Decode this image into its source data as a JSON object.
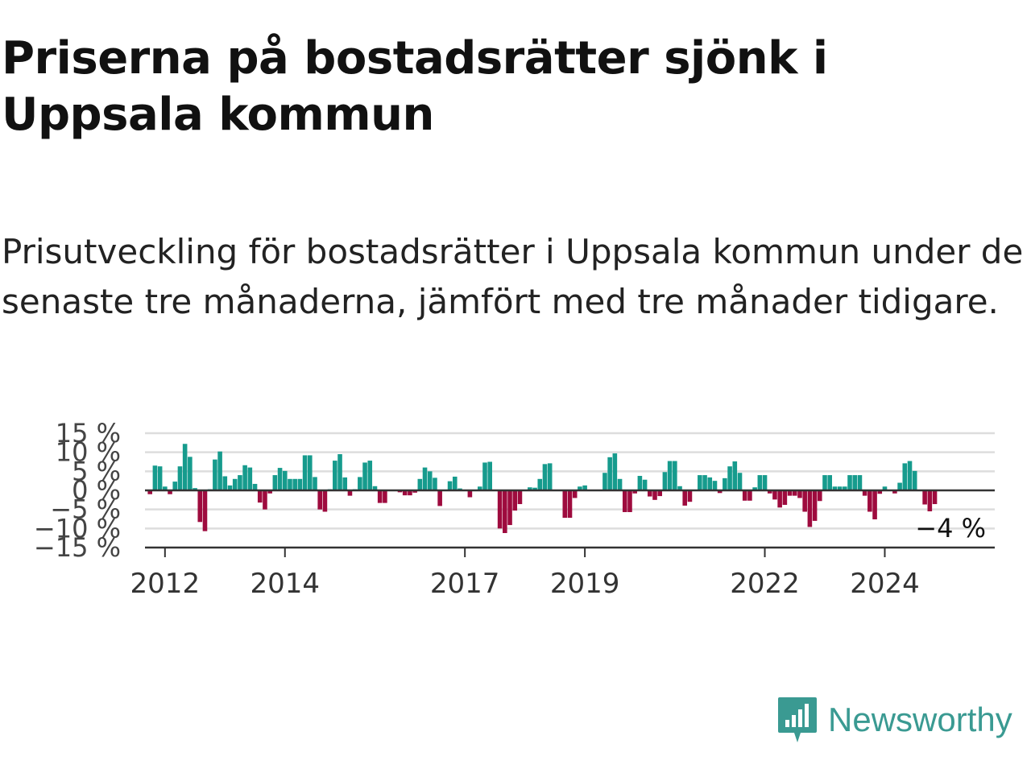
{
  "title": "Priserna på bostadsrätter sjönk i Uppsala kommun",
  "subtitle": "Prisutveckling för bostadsrätter i Uppsala kommun under de senaste tre månaderna, jämfört med tre månader tidigare.",
  "brand": "Newsworthy",
  "colors": {
    "positive": "#169b8d",
    "negative": "#9e0b3e",
    "brand": "#3a9a92",
    "grid": "#dddddd",
    "axis": "#333333"
  },
  "chart_data": {
    "type": "bar",
    "title": "Priserna på bostadsrätter sjönk i Uppsala kommun",
    "ylim": [
      -15,
      15
    ],
    "yticks": [
      "15 %",
      "10 %",
      "5 %",
      "0 %",
      "−5 %",
      "−10 %",
      "−15 %"
    ],
    "ytick_values": [
      15,
      10,
      5,
      0,
      -5,
      -10,
      -15
    ],
    "xticks": [
      "2012",
      "2014",
      "2017",
      "2019",
      "2022",
      "2024"
    ],
    "grid": true,
    "x_start": "2011-10",
    "x_step": "1 month",
    "last_value_label": "−4 %",
    "values": [
      -1,
      6.5,
      6.3,
      1,
      -1,
      2.3,
      6.3,
      12.2,
      8.8,
      0.6,
      -8.3,
      -10.7,
      0.3,
      8.1,
      10.2,
      3.7,
      1.3,
      3,
      4,
      6.6,
      6,
      1.7,
      -3.2,
      -5,
      -0.8,
      4,
      5.9,
      5.1,
      3,
      3,
      3,
      9.2,
      9.2,
      3.5,
      -5,
      -5.6,
      0.3,
      7.8,
      9.5,
      3.4,
      -1.4,
      0.3,
      3.5,
      7.3,
      7.8,
      1.1,
      -3.3,
      -3.3,
      0,
      0,
      -0.5,
      -1.3,
      -1.3,
      -0.6,
      3,
      6,
      5,
      3.3,
      -4.1,
      0,
      2.4,
      3.6,
      0.5,
      0,
      -1.8,
      0,
      1,
      7.3,
      7.5,
      -0.2,
      -10,
      -11.2,
      -9.1,
      -5.3,
      -3.6,
      0,
      0.8,
      0.7,
      3,
      6.9,
      7.1,
      0,
      0,
      -7.2,
      -7.2,
      -2,
      1,
      1.3,
      0,
      0,
      0,
      4.6,
      8.7,
      9.7,
      3,
      -5.7,
      -5.7,
      -0.8,
      3.8,
      2.8,
      -1.6,
      -2.5,
      -1.5,
      4.8,
      7.7,
      7.7,
      1.1,
      -4,
      -3,
      0,
      4,
      4,
      3.4,
      2.5,
      -0.7,
      3.2,
      6.3,
      7.6,
      4.6,
      -2.7,
      -2.7,
      0.8,
      4,
      4,
      -0.8,
      -2.4,
      -4.5,
      -3.8,
      -1.4,
      -1.4,
      -2,
      -5.6,
      -9.6,
      -8,
      -2.8,
      4,
      4,
      1,
      1,
      1,
      4,
      4,
      4,
      -1.4,
      -5.6,
      -7.6,
      -0.9,
      1,
      0,
      -0.8,
      2,
      7.1,
      7.7,
      5.1,
      0,
      -3.7,
      -5.5,
      -3.6
    ]
  }
}
